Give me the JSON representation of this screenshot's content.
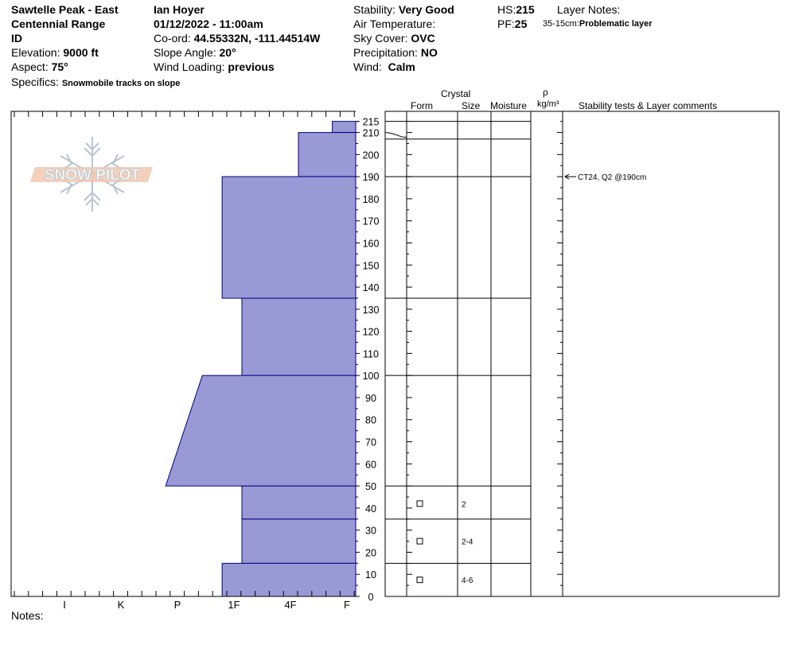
{
  "header": {
    "location_line1": "Sawtelle Peak - East",
    "location_line2": "Centennial Range",
    "location_line3": "ID",
    "elevation_label": "Elevation:",
    "elevation_value": "9000 ft",
    "aspect_label": "Aspect:",
    "aspect_value": "75°",
    "specifics_label": "Specifics:",
    "specifics_value": "Snowmobile tracks on slope",
    "observer": "Ian Hoyer",
    "datetime": "01/12/2022 - 11:00am",
    "coord_label": "Co-ord:",
    "coord_value": "44.55332N, -111.44514W",
    "slope_label": "Slope Angle:",
    "slope_value": "20°",
    "wind_loading_label": "Wind Loading:",
    "wind_loading_value": "previous",
    "stability_label": "Stability:",
    "stability_value": "Very Good",
    "air_temp_label": "Air Temperature:",
    "air_temp_value": "",
    "sky_label": "Sky Cover:",
    "sky_value": "OVC",
    "precip_label": "Precipitation:",
    "precip_value": "NO",
    "wind_label": "Wind:",
    "wind_value": "Calm",
    "hs_label": "HS:",
    "hs_value": "215",
    "pf_label": "PF:",
    "pf_value": "25",
    "layer_notes_label": "Layer Notes:",
    "layer_note_range": "35-15cm:",
    "layer_note_text": "Problematic layer"
  },
  "logo_text": "SNOW PILOT",
  "notes_label": "Notes:",
  "columns": {
    "crystal": "Crystal",
    "form": "Form",
    "size": "Size",
    "moisture": "Moisture",
    "rho": "ρ",
    "density_unit": "kg/m³",
    "comments": "Stability tests & Layer comments"
  },
  "stability_test_annotation": "CT24, Q2 @190cm",
  "colors": {
    "profile_fill": "#9999d6",
    "profile_stroke": "#000080"
  },
  "chart_data": {
    "type": "hardness-profile",
    "ylim": [
      0,
      220
    ],
    "y_ticks": [
      0,
      10,
      20,
      30,
      40,
      50,
      60,
      70,
      80,
      90,
      100,
      110,
      120,
      130,
      140,
      150,
      160,
      170,
      180,
      190,
      200,
      210,
      215
    ],
    "hardness_scale": [
      "I",
      "K",
      "P",
      "1F",
      "4F",
      "F"
    ],
    "layers": [
      {
        "top": 215,
        "bottom": 210,
        "hardness_top": 5.6,
        "hardness_bottom": 5.6
      },
      {
        "top": 210,
        "bottom": 190,
        "hardness_top": 5.0,
        "hardness_bottom": 5.0
      },
      {
        "top": 190,
        "bottom": 135,
        "hardness_top": 3.65,
        "hardness_bottom": 3.65
      },
      {
        "top": 135,
        "bottom": 100,
        "hardness_top": 4.0,
        "hardness_bottom": 4.0
      },
      {
        "top": 100,
        "bottom": 50,
        "hardness_top": 3.3,
        "hardness_bottom": 2.65
      },
      {
        "top": 50,
        "bottom": 35,
        "hardness_top": 4.0,
        "hardness_bottom": 4.0
      },
      {
        "top": 35,
        "bottom": 15,
        "hardness_top": 4.0,
        "hardness_bottom": 4.0
      },
      {
        "top": 15,
        "bottom": 0,
        "hardness_top": 3.65,
        "hardness_bottom": 3.65
      }
    ],
    "boundaries": [
      215,
      210,
      207,
      190,
      135,
      100,
      50,
      35,
      15,
      0
    ],
    "grain_rows": [
      {
        "height": 42,
        "size": "2"
      },
      {
        "height": 25,
        "size": "2-4"
      },
      {
        "height": 7.5,
        "size": "4-6"
      }
    ],
    "test_at": 190
  }
}
